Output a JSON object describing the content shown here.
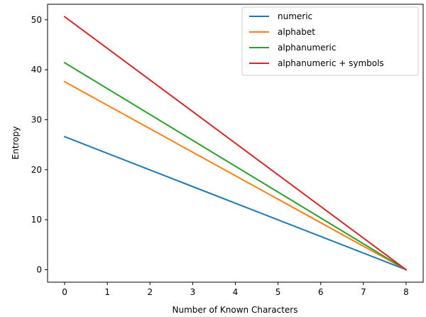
{
  "chart_data": {
    "type": "line",
    "title": "",
    "xlabel": "Number of Known Characters",
    "ylabel": "Entropy",
    "xlim": [
      -0.4,
      8.4
    ],
    "ylim": [
      -2.5,
      53.1
    ],
    "x_ticks": [
      0,
      1,
      2,
      3,
      4,
      5,
      6,
      7,
      8
    ],
    "y_ticks": [
      0,
      10,
      20,
      30,
      40,
      50
    ],
    "x_tick_labels": [
      "0",
      "1",
      "2",
      "3",
      "4",
      "5",
      "6",
      "7",
      "8"
    ],
    "y_tick_labels": [
      "0",
      "10",
      "20",
      "30",
      "40",
      "50"
    ],
    "grid": false,
    "legend_position": "top-right",
    "x": [
      0,
      8
    ],
    "series": [
      {
        "name": "numeric",
        "color": "#1f77b4",
        "values": [
          26.6,
          0
        ]
      },
      {
        "name": "alphabet",
        "color": "#ff7f0e",
        "values": [
          37.6,
          0
        ]
      },
      {
        "name": "alphanumeric",
        "color": "#2ca02c",
        "values": [
          41.4,
          0
        ]
      },
      {
        "name": "alphanumeric + symbols",
        "color": "#d62728",
        "values": [
          50.6,
          0
        ]
      }
    ]
  }
}
